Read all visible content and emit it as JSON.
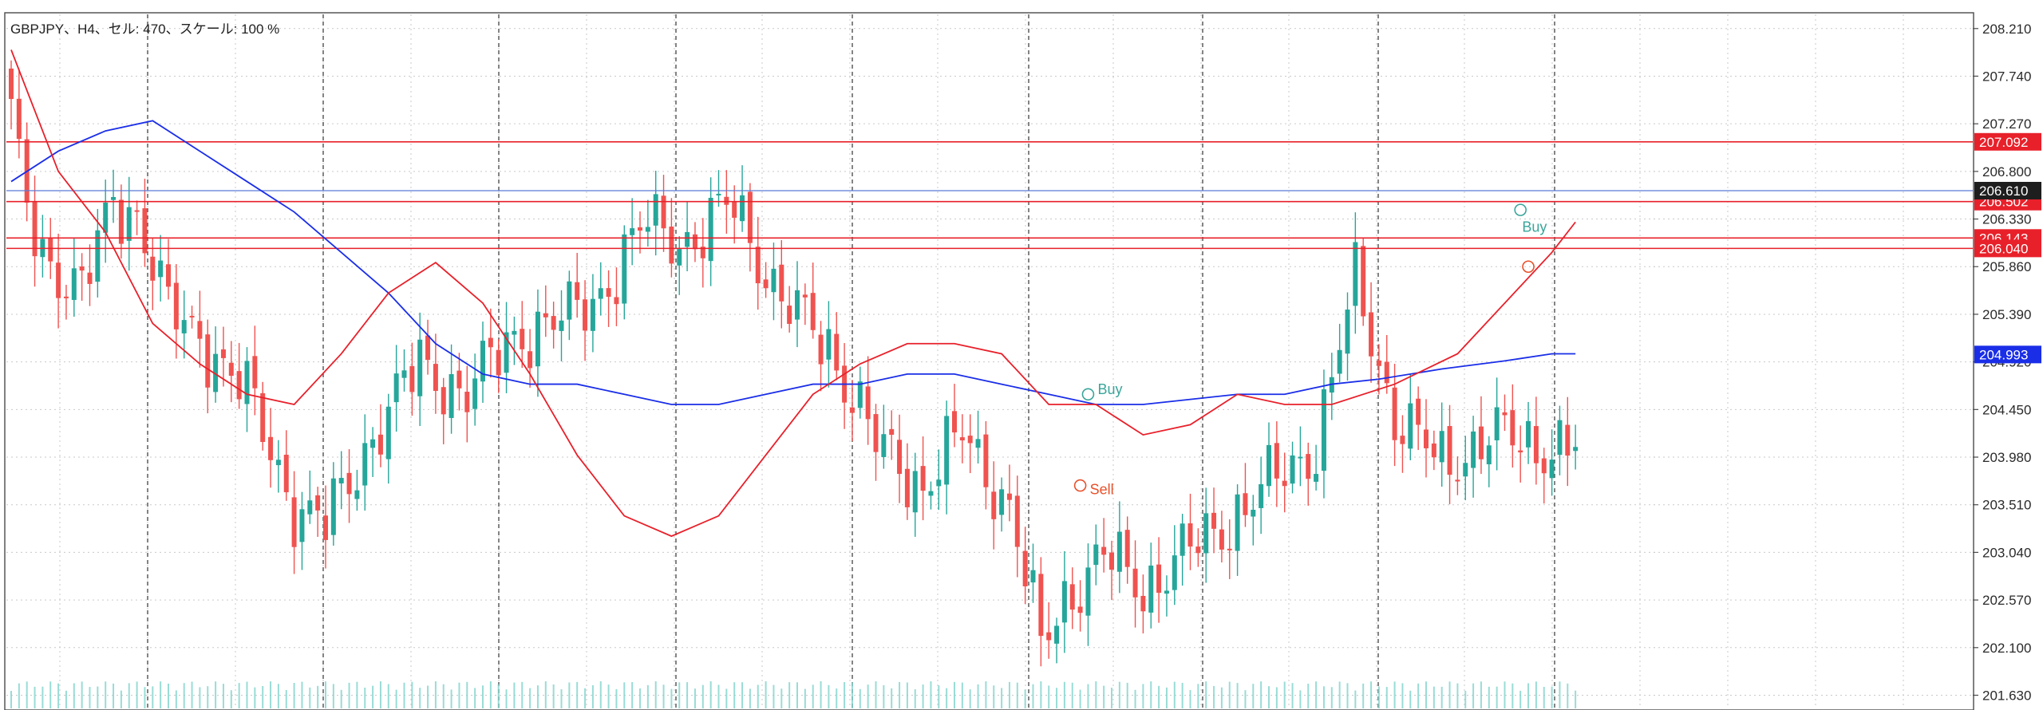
{
  "chart_info": {
    "label": "GBPJPY、H4、セル: 470、スケール: 100 %"
  },
  "chart_data": {
    "type": "candlestick",
    "symbol": "GBPJPY",
    "timeframe": "H4",
    "ylim": [
      201.5,
      208.35
    ],
    "y_ticks": [
      "208.210",
      "207.740",
      "207.270",
      "206.800",
      "206.330",
      "205.860",
      "205.390",
      "204.920",
      "204.450",
      "203.980",
      "203.510",
      "203.040",
      "202.570",
      "202.100",
      "201.630"
    ],
    "candle_count": 200,
    "anchors": [
      [
        0,
        207.3
      ],
      [
        2,
        206.4
      ],
      [
        5,
        205.9
      ],
      [
        9,
        205.6
      ],
      [
        13,
        206.5
      ],
      [
        16,
        206.4
      ],
      [
        20,
        205.4
      ],
      [
        25,
        205.1
      ],
      [
        30,
        204.6
      ],
      [
        36,
        203.5
      ],
      [
        40,
        203.3
      ],
      [
        46,
        204.2
      ],
      [
        52,
        204.9
      ],
      [
        58,
        204.6
      ],
      [
        64,
        205.2
      ],
      [
        70,
        205.3
      ],
      [
        76,
        205.7
      ],
      [
        81,
        206.3
      ],
      [
        87,
        206.1
      ],
      [
        92,
        206.5
      ],
      [
        98,
        205.5
      ],
      [
        104,
        205.1
      ],
      [
        110,
        204.1
      ],
      [
        116,
        203.7
      ],
      [
        121,
        204.2
      ],
      [
        127,
        203.5
      ],
      [
        131,
        202.1
      ],
      [
        134,
        202.6
      ],
      [
        139,
        203.0
      ],
      [
        144,
        202.7
      ],
      [
        149,
        203.0
      ],
      [
        154,
        203.3
      ],
      [
        160,
        203.7
      ],
      [
        166,
        204.1
      ],
      [
        171,
        205.7
      ],
      [
        176,
        204.4
      ],
      [
        182,
        203.9
      ],
      [
        188,
        204.2
      ],
      [
        193,
        204.1
      ],
      [
        198,
        204.1
      ]
    ],
    "ma_red": {
      "color": "#e8202a",
      "points": [
        [
          0,
          208.0
        ],
        [
          6,
          206.8
        ],
        [
          12,
          206.2
        ],
        [
          18,
          205.3
        ],
        [
          24,
          204.9
        ],
        [
          30,
          204.6
        ],
        [
          36,
          204.5
        ],
        [
          42,
          205.0
        ],
        [
          48,
          205.6
        ],
        [
          54,
          205.9
        ],
        [
          60,
          205.5
        ],
        [
          66,
          204.8
        ],
        [
          72,
          204.0
        ],
        [
          78,
          203.4
        ],
        [
          84,
          203.2
        ],
        [
          90,
          203.4
        ],
        [
          96,
          204.0
        ],
        [
          102,
          204.6
        ],
        [
          108,
          204.9
        ],
        [
          114,
          205.1
        ],
        [
          120,
          205.1
        ],
        [
          126,
          205.0
        ],
        [
          132,
          204.5
        ],
        [
          138,
          204.5
        ],
        [
          144,
          204.2
        ],
        [
          150,
          204.3
        ],
        [
          156,
          204.6
        ],
        [
          162,
          204.5
        ],
        [
          168,
          204.5
        ],
        [
          176,
          204.7
        ],
        [
          184,
          205.0
        ],
        [
          190,
          205.5
        ],
        [
          196,
          206.0
        ],
        [
          199,
          206.3
        ]
      ]
    },
    "ma_blue": {
      "color": "#1a2ee8",
      "points": [
        [
          0,
          206.7
        ],
        [
          6,
          207.0
        ],
        [
          12,
          207.2
        ],
        [
          18,
          207.3
        ],
        [
          24,
          207.0
        ],
        [
          30,
          206.7
        ],
        [
          36,
          206.4
        ],
        [
          42,
          206.0
        ],
        [
          48,
          205.6
        ],
        [
          54,
          205.1
        ],
        [
          60,
          204.8
        ],
        [
          66,
          204.7
        ],
        [
          72,
          204.7
        ],
        [
          78,
          204.6
        ],
        [
          84,
          204.5
        ],
        [
          90,
          204.5
        ],
        [
          96,
          204.6
        ],
        [
          102,
          204.7
        ],
        [
          108,
          204.7
        ],
        [
          114,
          204.8
        ],
        [
          120,
          204.8
        ],
        [
          126,
          204.7
        ],
        [
          132,
          204.6
        ],
        [
          138,
          204.5
        ],
        [
          144,
          204.5
        ],
        [
          150,
          204.55
        ],
        [
          156,
          204.6
        ],
        [
          162,
          204.6
        ],
        [
          168,
          204.7
        ],
        [
          174,
          204.75
        ],
        [
          182,
          204.85
        ],
        [
          190,
          204.93
        ],
        [
          196,
          205.0
        ],
        [
          199,
          205.0
        ]
      ]
    },
    "h_lines": [
      {
        "price": 207.092,
        "label": "207.092",
        "color": "#e8202a"
      },
      {
        "price": 206.502,
        "label": "206.502",
        "color": "#e8202a"
      },
      {
        "price": 206.143,
        "label": "206.143",
        "color": "#e8202a"
      },
      {
        "price": 206.04,
        "label": "206.040",
        "color": "#e8202a"
      }
    ],
    "bid_line": {
      "price": 206.61,
      "label": "206.610",
      "color": "#5a7ad8"
    },
    "ma_badge": {
      "price": 204.993,
      "label": "204.993",
      "color": "#1a2ee8"
    },
    "signals": [
      {
        "text": "Buy",
        "candle": 137,
        "price": 204.65,
        "color": "#3aa59a"
      },
      {
        "text": "Sell",
        "candle": 136,
        "price": 203.66,
        "color": "#e8502a"
      },
      {
        "text": "Buy",
        "candle": 191,
        "price": 206.25,
        "color": "#3aa59a"
      }
    ],
    "signal_markers": [
      {
        "candle": 137,
        "price": 204.6,
        "color": "#3aa59a"
      },
      {
        "candle": 136,
        "price": 203.7,
        "color": "#e8502a"
      },
      {
        "candle": 192,
        "price": 206.42,
        "color": "#3aa59a"
      },
      {
        "candle": 193,
        "price": 205.86,
        "color": "#e8502a"
      }
    ],
    "candle_colors": {
      "up": "#26a69a",
      "down": "#ef5350"
    }
  }
}
